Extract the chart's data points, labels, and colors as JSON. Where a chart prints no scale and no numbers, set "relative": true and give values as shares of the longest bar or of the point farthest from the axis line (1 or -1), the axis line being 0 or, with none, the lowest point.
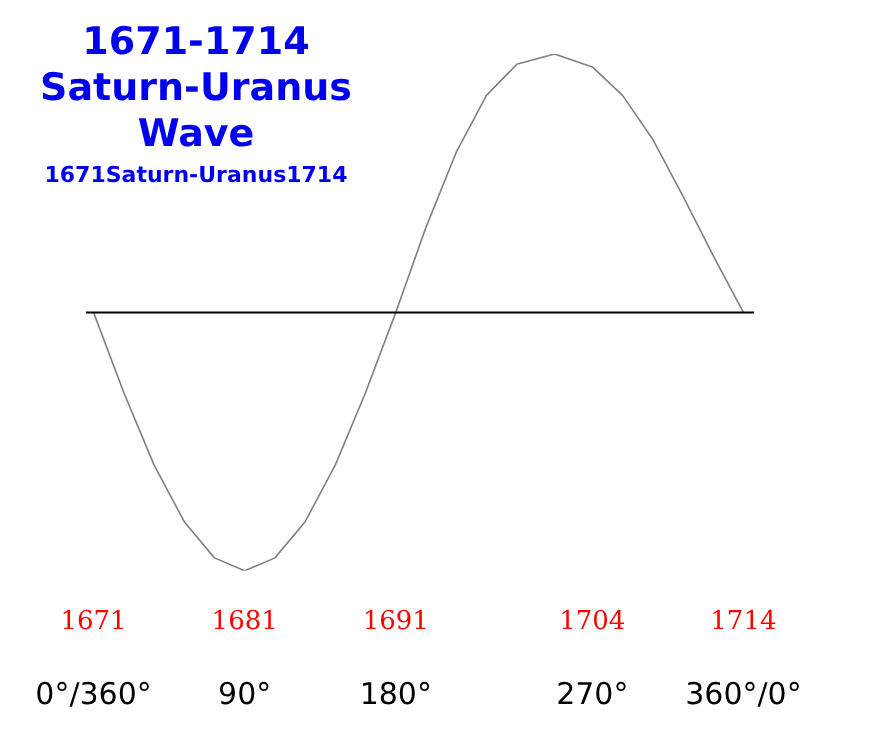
{
  "chart_data": {
    "type": "line",
    "title": "1671-1714\nSaturn-Uranus\nWave",
    "subtitle": "1671Saturn-Uranus1714",
    "relative": true,
    "x": [
      1671,
      1673,
      1675,
      1677,
      1679,
      1681,
      1683,
      1685,
      1687,
      1689,
      1691,
      1693,
      1695,
      1697,
      1699,
      1701.5,
      1704,
      1706,
      1708,
      1710,
      1712,
      1714
    ],
    "series": [
      {
        "color": "#808080",
        "values": [
          0,
          -0.31,
          -0.59,
          -0.81,
          -0.95,
          -1,
          -0.95,
          -0.81,
          -0.59,
          -0.31,
          0,
          0.33,
          0.62,
          0.84,
          0.96,
          1,
          0.95,
          0.84,
          0.67,
          0.45,
          0.22,
          0
        ]
      }
    ],
    "xlim": [
      1670.5,
      1714.7
    ],
    "xticks": [
      1671,
      1681,
      1691,
      1704,
      1714
    ],
    "annotations": [
      "0°/360°",
      "90°",
      "180°",
      "270°",
      "360°/0°"
    ],
    "grid": false,
    "legend": false,
    "marker": "none",
    "line_style": "solid"
  }
}
